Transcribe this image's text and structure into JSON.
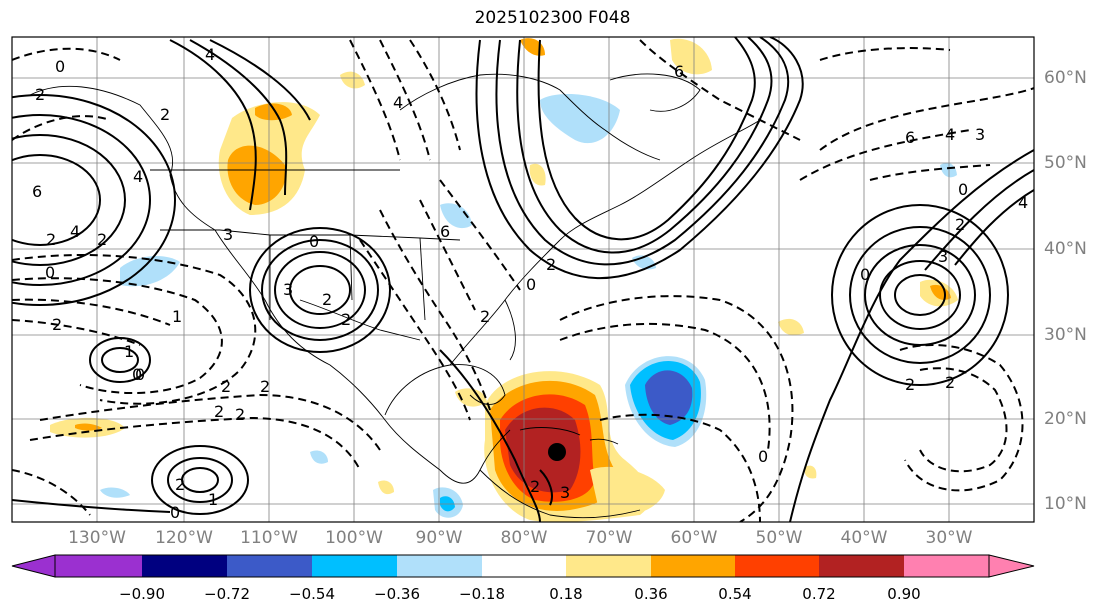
{
  "title": "2025102300 F048",
  "lon_labels": [
    "130°W",
    "120°W",
    "110°W",
    "100°W",
    "90°W",
    "80°W",
    "70°W",
    "60°W",
    "50°W",
    "40°W",
    "30°W"
  ],
  "lat_labels": [
    "60°N",
    "50°N",
    "40°N",
    "30°N",
    "20°N",
    "10°N"
  ],
  "colorbar": {
    "ticks": [
      "−0.90",
      "−0.72",
      "−0.54",
      "−0.36",
      "−0.18",
      "0.18",
      "0.36",
      "0.54",
      "0.72",
      "0.90"
    ],
    "colors": [
      "#9b30d0",
      "#000080",
      "#3c5ac8",
      "#00bfff",
      "#b0e0fa",
      "#ffffff",
      "#ffe88a",
      "#ffa500",
      "#ff4000",
      "#b22222",
      "#ff80b0"
    ]
  },
  "contour_labels": [
    "0",
    "4",
    "2",
    "6",
    "4",
    "2",
    "2",
    "6",
    "6",
    "4",
    "2",
    "3",
    "3",
    "0",
    "0",
    "2",
    "2",
    "1",
    "2",
    "0",
    "2",
    "0",
    "1",
    "2",
    "3",
    "2",
    "6",
    "4",
    "3",
    "2",
    "4",
    "2",
    "0",
    "2",
    "3",
    "2",
    "0",
    "2",
    "0",
    "0",
    "1",
    "2",
    "4",
    "2",
    "0",
    "2"
  ],
  "marker": "storm-center"
}
